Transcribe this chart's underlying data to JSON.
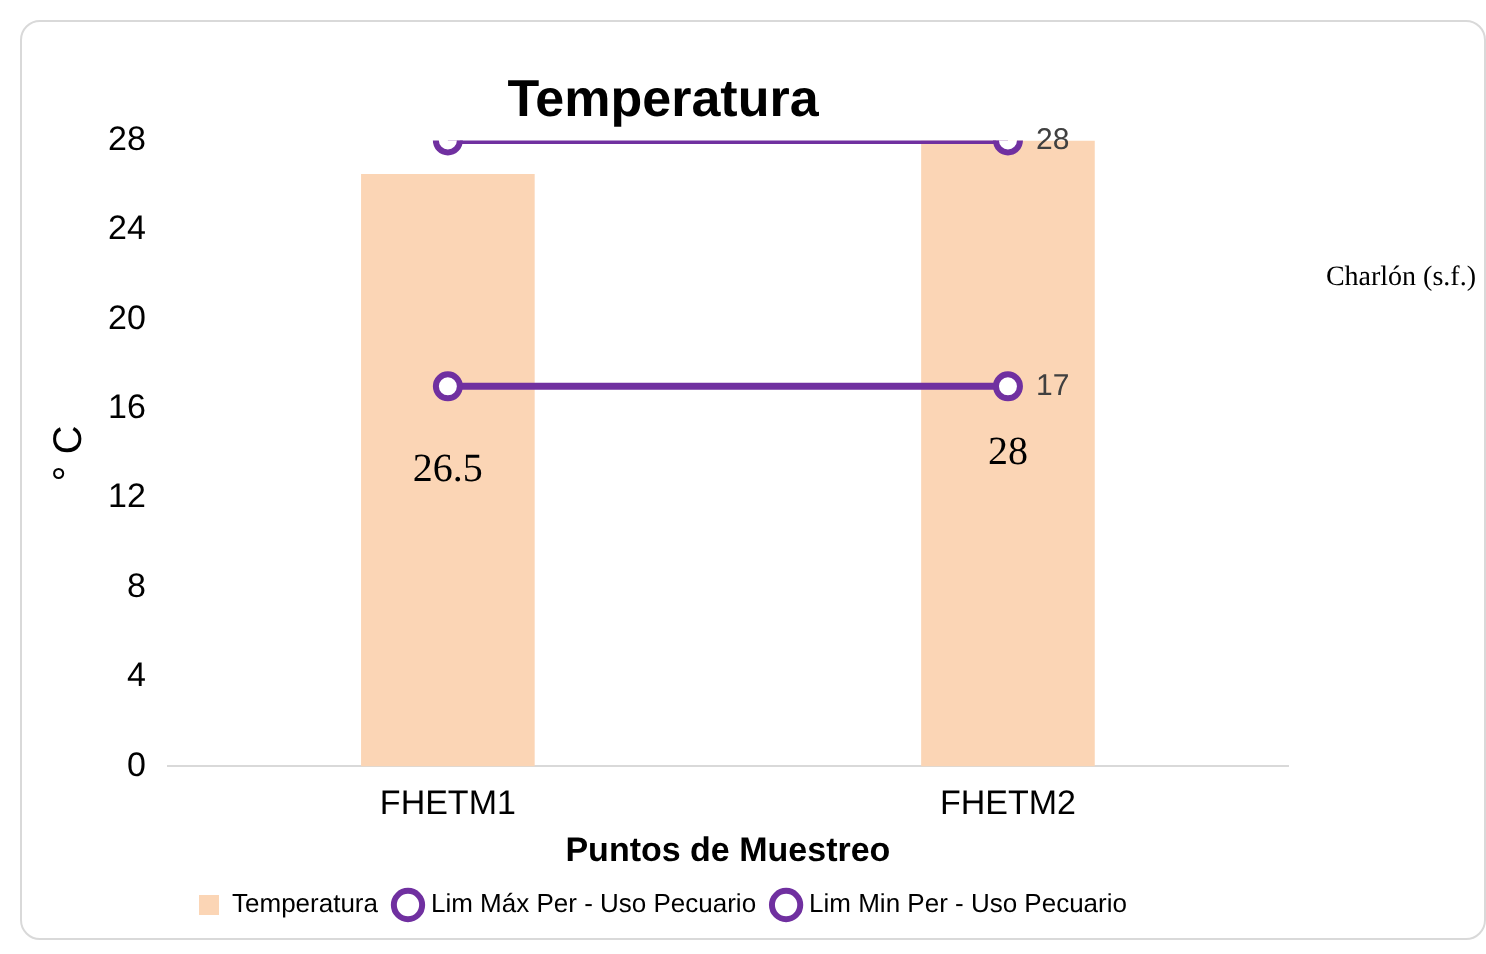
{
  "chart_data": {
    "type": "bar",
    "title": "Temperatura",
    "xlabel": "Puntos de Muestreo",
    "ylabel": "° C",
    "categories": [
      "FHETM1",
      "FHETM2"
    ],
    "series": [
      {
        "name": "Temperatura",
        "color": "#fbd5b5",
        "values": [
          26.5,
          28
        ],
        "value_labels": [
          "26.5",
          "28"
        ]
      },
      {
        "name": "Lim Máx Per - Uso Pecuario",
        "type": "line",
        "color": "#7030a0",
        "values": [
          28,
          28
        ],
        "value_labels": [
          null,
          "28"
        ]
      },
      {
        "name": "Lim Min Per - Uso Pecuario",
        "type": "line",
        "color": "#7030a0",
        "values": [
          17,
          17
        ],
        "value_labels": [
          null,
          "17"
        ]
      }
    ],
    "ylim": [
      0,
      28
    ],
    "yticks": [
      0,
      4,
      8,
      12,
      16,
      20,
      24,
      28
    ],
    "grid": false,
    "legend": "bottom",
    "marker": "circle",
    "line_style": "solid",
    "annotations": [
      "Charlón (s.f.)"
    ]
  }
}
